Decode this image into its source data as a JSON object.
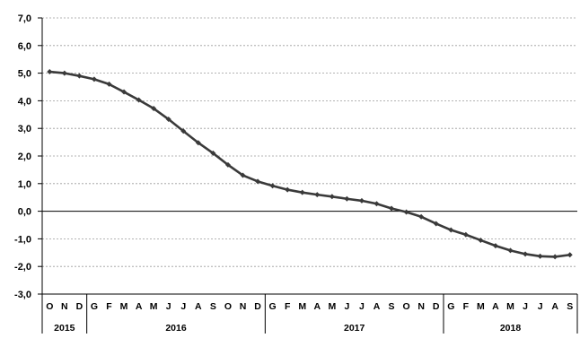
{
  "chart_data": {
    "type": "line",
    "title": "",
    "xlabel": "",
    "ylabel": "",
    "ylim": [
      -3.0,
      7.0
    ],
    "yticks": [
      "7,0",
      "6,0",
      "5,0",
      "4,0",
      "3,0",
      "2,0",
      "1,0",
      "0,0",
      "-1,0",
      "-2,0",
      "-3,0"
    ],
    "grid": true,
    "legend": "none",
    "months": [
      "O",
      "N",
      "D",
      "G",
      "F",
      "M",
      "A",
      "M",
      "J",
      "J",
      "A",
      "S",
      "O",
      "N",
      "D",
      "G",
      "F",
      "M",
      "A",
      "M",
      "J",
      "J",
      "A",
      "S",
      "O",
      "N",
      "D",
      "G",
      "F",
      "M",
      "A",
      "M",
      "J",
      "J",
      "A",
      "S"
    ],
    "years": [
      {
        "label": "2015",
        "count": 3
      },
      {
        "label": "2016",
        "count": 12
      },
      {
        "label": "2017",
        "count": 12
      },
      {
        "label": "2018",
        "count": 9
      }
    ],
    "series": [
      {
        "values": [
          5.05,
          5.0,
          4.9,
          4.78,
          4.6,
          4.32,
          4.03,
          3.72,
          3.33,
          2.9,
          2.48,
          2.1,
          1.68,
          1.3,
          1.08,
          0.92,
          0.78,
          0.68,
          0.6,
          0.53,
          0.45,
          0.38,
          0.27,
          0.1,
          -0.03,
          -0.2,
          -0.45,
          -0.68,
          -0.85,
          -1.05,
          -1.25,
          -1.42,
          -1.55,
          -1.63,
          -1.65,
          -1.58
        ],
        "color": "#3a3a3a"
      }
    ]
  }
}
